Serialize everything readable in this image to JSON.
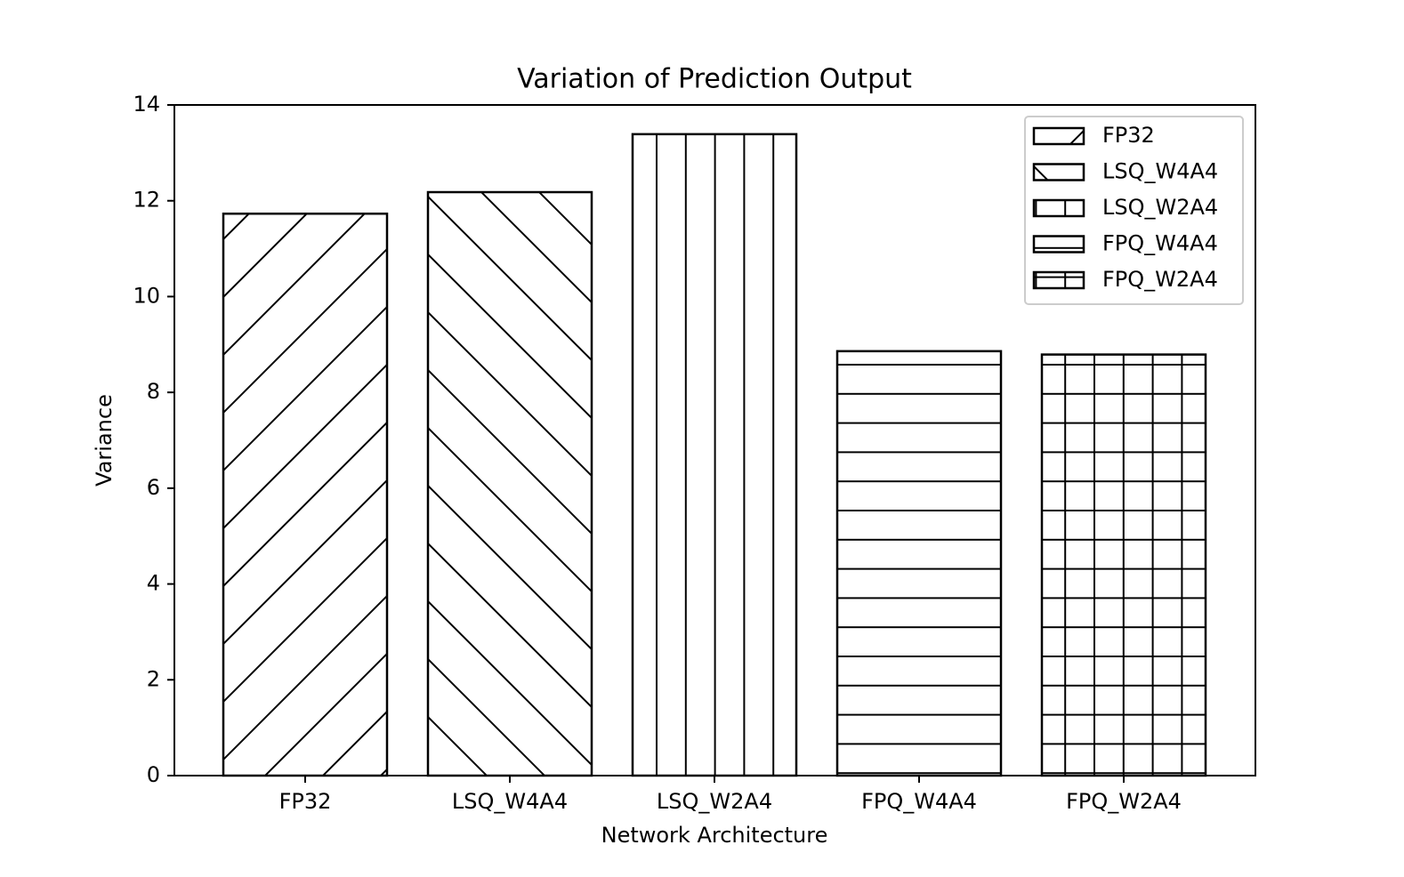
{
  "chart_data": {
    "type": "bar",
    "title": "Variation of Prediction Output",
    "x_label": "Network Architecture",
    "y_label": "Variance",
    "categories": [
      "FP32",
      "LSQ_W4A4",
      "LSQ_W2A4",
      "FPQ_W4A4",
      "FPQ_W2A4"
    ],
    "values": [
      11.73,
      12.18,
      13.39,
      8.86,
      8.79
    ],
    "hatches": [
      "/",
      "\\",
      "|",
      "-",
      "+"
    ],
    "color": "#ffffff",
    "edgecolor": "#000000",
    "ylim": [
      0,
      14
    ],
    "yticks": [
      0,
      2,
      4,
      6,
      8,
      10,
      12,
      14
    ],
    "legend": "upper right",
    "grid": false
  }
}
